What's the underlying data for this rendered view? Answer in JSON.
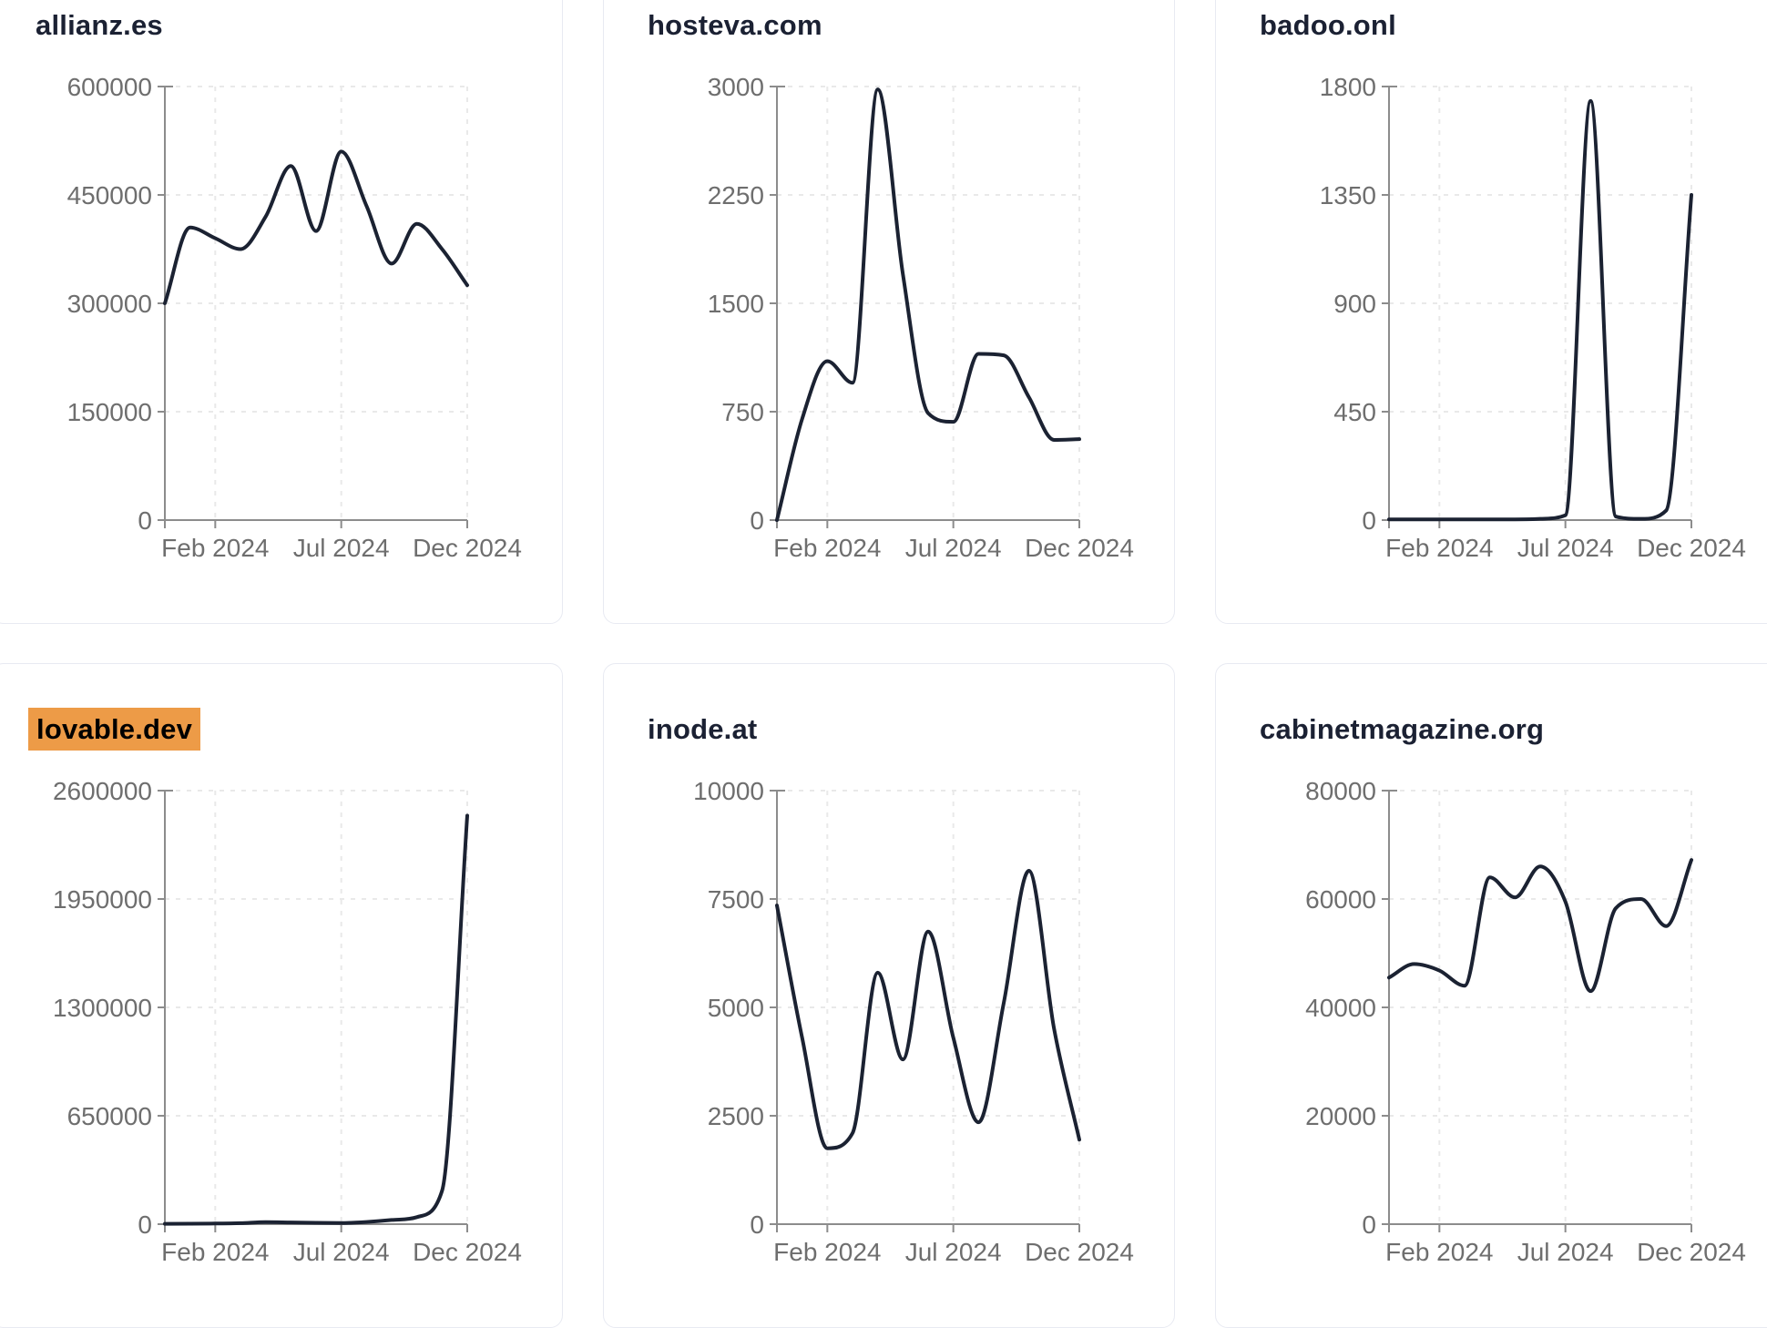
{
  "page": {
    "background": "#ffffff",
    "description": "Grid of six domain traffic trend cards, Jan 2024 - Dec 2024"
  },
  "style": {
    "line_color": "#1b2232",
    "title_color": "#1b2133",
    "highlight_color": "#ED9B47",
    "highlight_text_color": "#000000",
    "tick_label_color": "#6e6e6e",
    "axis_color": "#8c8c8c",
    "grid_color": "#e9e9e9",
    "card_border_color": "#e8eaf2",
    "card_background": "#ffffff"
  },
  "chart_data": [
    {
      "type": "line",
      "title": "allianz.es",
      "highlighted": false,
      "x": [
        "2023-12",
        "2024-01",
        "2024-02",
        "2024-03",
        "2024-04",
        "2024-05",
        "2024-06",
        "2024-07",
        "2024-08",
        "2024-09",
        "2024-10",
        "2024-11",
        "2024-12"
      ],
      "values": [
        300000,
        405000,
        390000,
        375000,
        420000,
        490000,
        400000,
        510000,
        435000,
        355000,
        410000,
        375000,
        325000
      ],
      "ylim": [
        0,
        600000
      ],
      "y_ticks": [
        0,
        150000,
        300000,
        450000,
        600000
      ],
      "x_tick_labels": [
        "Feb 2024",
        "Jul 2024",
        "Dec 2024"
      ],
      "x_tick_indices": [
        2,
        7,
        12
      ],
      "grid": true,
      "legend": "none"
    },
    {
      "type": "line",
      "title": "hosteva.com",
      "highlighted": false,
      "x": [
        "2023-12",
        "2024-01",
        "2024-02",
        "2024-03",
        "2024-04",
        "2024-05",
        "2024-06",
        "2024-07",
        "2024-08",
        "2024-09",
        "2024-10",
        "2024-11",
        "2024-12"
      ],
      "values": [
        0,
        700,
        1100,
        950,
        2980,
        1700,
        740,
        680,
        1150,
        1140,
        850,
        555,
        560
      ],
      "ylim": [
        0,
        3000
      ],
      "y_ticks": [
        0,
        750,
        1500,
        2250,
        3000
      ],
      "x_tick_labels": [
        "Feb 2024",
        "Jul 2024",
        "Dec 2024"
      ],
      "x_tick_indices": [
        2,
        7,
        12
      ],
      "grid": true,
      "legend": "none"
    },
    {
      "type": "line",
      "title": "badoo.onl",
      "highlighted": false,
      "x": [
        "2023-12",
        "2024-01",
        "2024-02",
        "2024-03",
        "2024-04",
        "2024-05",
        "2024-06",
        "2024-07",
        "2024-08",
        "2024-09",
        "2024-10",
        "2024-11",
        "2024-12"
      ],
      "values": [
        3,
        3,
        3,
        3,
        3,
        3,
        5,
        20,
        1740,
        15,
        5,
        40,
        1350
      ],
      "ylim": [
        0,
        1800
      ],
      "y_ticks": [
        0,
        450,
        900,
        1350,
        1800
      ],
      "x_tick_labels": [
        "Feb 2024",
        "Jul 2024",
        "Dec 2024"
      ],
      "x_tick_indices": [
        2,
        7,
        12
      ],
      "grid": true,
      "legend": "none"
    },
    {
      "type": "line",
      "title": "lovable.dev",
      "highlighted": true,
      "x": [
        "2023-12",
        "2024-01",
        "2024-02",
        "2024-03",
        "2024-04",
        "2024-05",
        "2024-06",
        "2024-07",
        "2024-08",
        "2024-09",
        "2024-10",
        "2024-11",
        "2024-12"
      ],
      "values": [
        2000,
        2500,
        4000,
        6000,
        12000,
        10000,
        8000,
        7000,
        13000,
        25000,
        42000,
        200000,
        2450000
      ],
      "ylim": [
        0,
        2600000
      ],
      "y_ticks": [
        0,
        650000,
        1300000,
        1950000,
        2600000
      ],
      "x_tick_labels": [
        "Feb 2024",
        "Jul 2024",
        "Dec 2024"
      ],
      "x_tick_indices": [
        2,
        7,
        12
      ],
      "grid": true,
      "legend": "none"
    },
    {
      "type": "line",
      "title": "inode.at",
      "highlighted": false,
      "x": [
        "2023-12",
        "2024-01",
        "2024-02",
        "2024-03",
        "2024-04",
        "2024-05",
        "2024-06",
        "2024-07",
        "2024-08",
        "2024-09",
        "2024-10",
        "2024-11",
        "2024-12"
      ],
      "values": [
        7350,
        4300,
        1750,
        2100,
        5800,
        3800,
        6750,
        4300,
        2350,
        5100,
        8150,
        4500,
        1950
      ],
      "ylim": [
        0,
        10000
      ],
      "y_ticks": [
        0,
        2500,
        5000,
        7500,
        10000
      ],
      "x_tick_labels": [
        "Feb 2024",
        "Jul 2024",
        "Dec 2024"
      ],
      "x_tick_indices": [
        2,
        7,
        12
      ],
      "grid": true,
      "legend": "none"
    },
    {
      "type": "line",
      "title": "cabinetmagazine.org",
      "highlighted": false,
      "x": [
        "2023-12",
        "2024-01",
        "2024-02",
        "2024-03",
        "2024-04",
        "2024-05",
        "2024-06",
        "2024-07",
        "2024-08",
        "2024-09",
        "2024-10",
        "2024-11",
        "2024-12"
      ],
      "values": [
        45500,
        48000,
        46800,
        44000,
        64000,
        60300,
        66000,
        59500,
        43000,
        58300,
        60000,
        55000,
        67200
      ],
      "ylim": [
        0,
        80000
      ],
      "y_ticks": [
        0,
        20000,
        40000,
        60000,
        80000
      ],
      "x_tick_labels": [
        "Feb 2024",
        "Jul 2024",
        "Dec 2024"
      ],
      "x_tick_indices": [
        2,
        7,
        12
      ],
      "grid": true,
      "legend": "none"
    }
  ]
}
